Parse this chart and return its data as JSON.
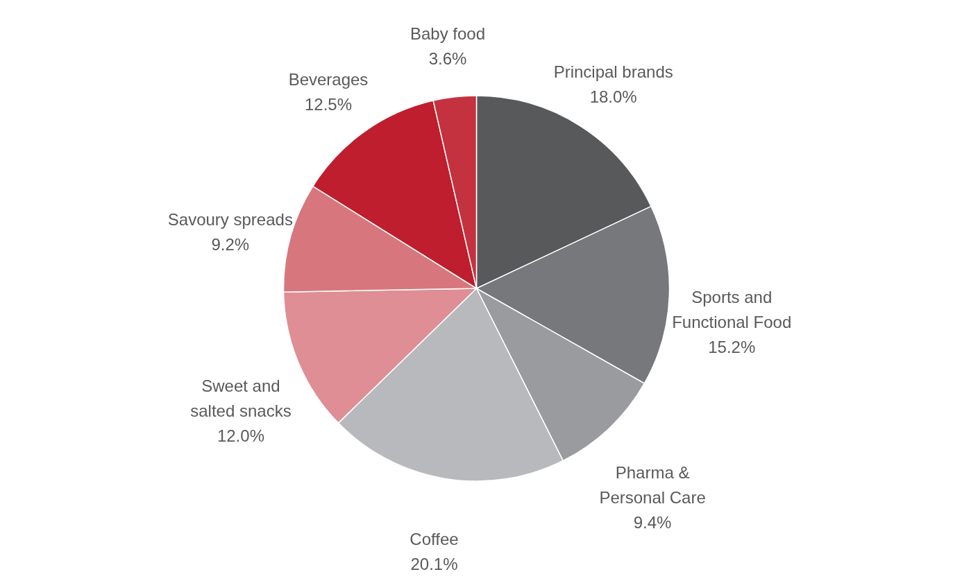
{
  "chart_data": {
    "type": "pie",
    "categories": [
      "Principal brands",
      "Sports and\nFunctional Food",
      "Pharma &\nPersonal Care",
      "Coffee",
      "Sweet and\nsalted snacks",
      "Savoury spreads",
      "Beverages",
      "Baby food"
    ],
    "values": [
      18.0,
      15.2,
      9.4,
      20.1,
      12.0,
      9.2,
      12.5,
      3.6
    ],
    "value_labels": [
      "18.0%",
      "15.2%",
      "9.4%",
      "20.1%",
      "12.0%",
      "9.2%",
      "12.5%",
      "3.6%"
    ],
    "colors": [
      "#58595b",
      "#77787b",
      "#9a9b9e",
      "#b8b9bc",
      "#de8e94",
      "#d8767d",
      "#be1e2d",
      "#c4323f"
    ]
  }
}
